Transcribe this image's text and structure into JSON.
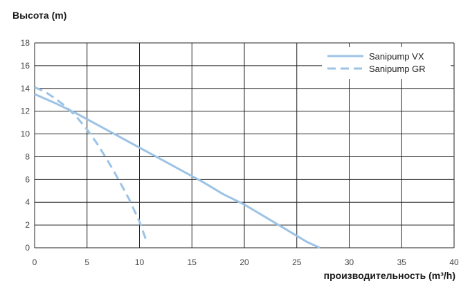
{
  "chart_data": {
    "type": "line",
    "title": "",
    "ylabel": "Высота (m)",
    "xlabel": "производительность (m³/h)",
    "xlim": [
      0,
      40
    ],
    "ylim": [
      0,
      18
    ],
    "x_ticks": [
      0,
      5,
      10,
      15,
      20,
      25,
      30,
      35,
      40
    ],
    "y_ticks": [
      0,
      2,
      4,
      6,
      8,
      10,
      12,
      14,
      16,
      18
    ],
    "x_tick_labels": [
      "0",
      "5",
      "10",
      "15",
      "20",
      "25",
      "30",
      "35",
      "40"
    ],
    "y_tick_labels": [
      "0",
      "2",
      "4",
      "6",
      "8",
      "10",
      "12",
      "14",
      "16",
      "18"
    ],
    "grid": true,
    "legend_position": "top-right",
    "series": [
      {
        "name": "Sanipump VX",
        "style": "solid",
        "color": "#9cc3e6",
        "x": [
          0,
          2,
          4,
          6,
          8,
          10,
          12,
          14,
          16,
          18,
          20,
          22,
          24,
          26,
          27.2
        ],
        "y": [
          13.5,
          12.7,
          11.8,
          10.8,
          9.8,
          8.8,
          7.8,
          6.8,
          5.8,
          4.7,
          3.8,
          2.7,
          1.6,
          0.5,
          0
        ]
      },
      {
        "name": "Sanipump GR",
        "style": "dashed",
        "color": "#9cc3e6",
        "x": [
          0,
          1,
          2,
          3,
          4,
          5,
          6,
          7,
          8,
          9,
          10,
          10.7
        ],
        "y": [
          14.1,
          13.7,
          13.1,
          12.4,
          11.5,
          10.4,
          9.1,
          7.6,
          6.0,
          4.3,
          2.3,
          0.5
        ]
      }
    ]
  }
}
